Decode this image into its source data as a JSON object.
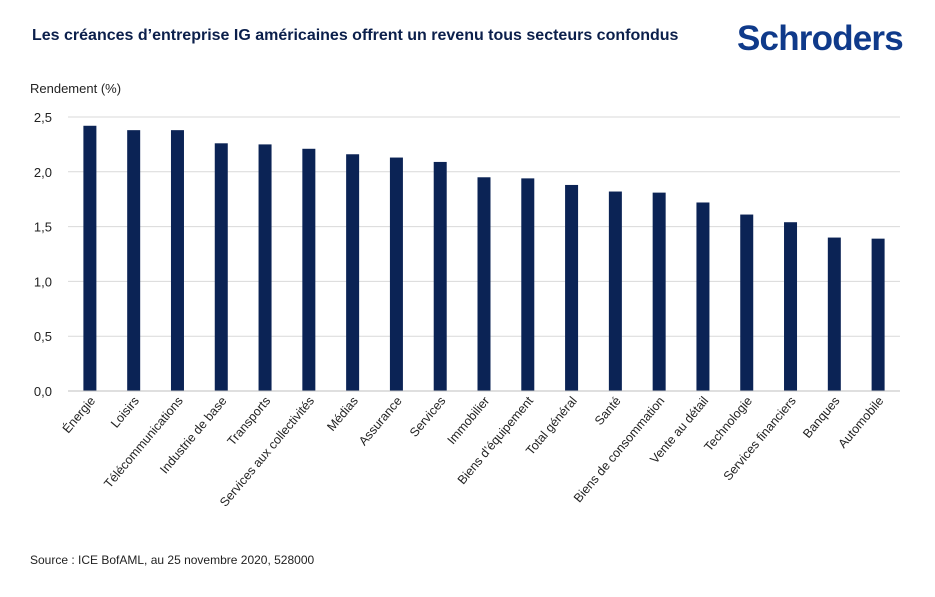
{
  "title": "Les créances d’entreprise IG américaines offrent un revenu tous secteurs confondus",
  "logo": "Schroders",
  "source": "Source : ICE BofAML, au 25 novembre 2020, 528000",
  "colors": {
    "bar": "#0b2355",
    "grid": "#d9d9d9",
    "axis": "#bfbfbf",
    "title": "#0b1f4b",
    "logo": "#0f3a8a"
  },
  "chart_data": {
    "type": "bar",
    "title": "Les créances d’entreprise IG américaines offrent un revenu tous secteurs confondus",
    "ylabel": "Rendement (%)",
    "xlabel": "",
    "ylim": [
      0,
      2.5
    ],
    "yticks": [
      "0,0",
      "0,5",
      "1,0",
      "1,5",
      "2,0",
      "2,5"
    ],
    "grid": true,
    "categories": [
      "Énergie",
      "Loisirs",
      "Télécommunications",
      "Industrie de base",
      "Transports",
      "Services aux collectivités",
      "Médias",
      "Assurance",
      "Services",
      "Immobilier",
      "Biens d’équipement",
      "Total général",
      "Santé",
      "Biens de consommation",
      "Vente au détail",
      "Technologie",
      "Services financiers",
      "Banques",
      "Automobile"
    ],
    "values": [
      2.42,
      2.38,
      2.38,
      2.26,
      2.25,
      2.21,
      2.16,
      2.13,
      2.09,
      1.95,
      1.94,
      1.88,
      1.82,
      1.81,
      1.72,
      1.61,
      1.54,
      1.4,
      1.39
    ]
  }
}
